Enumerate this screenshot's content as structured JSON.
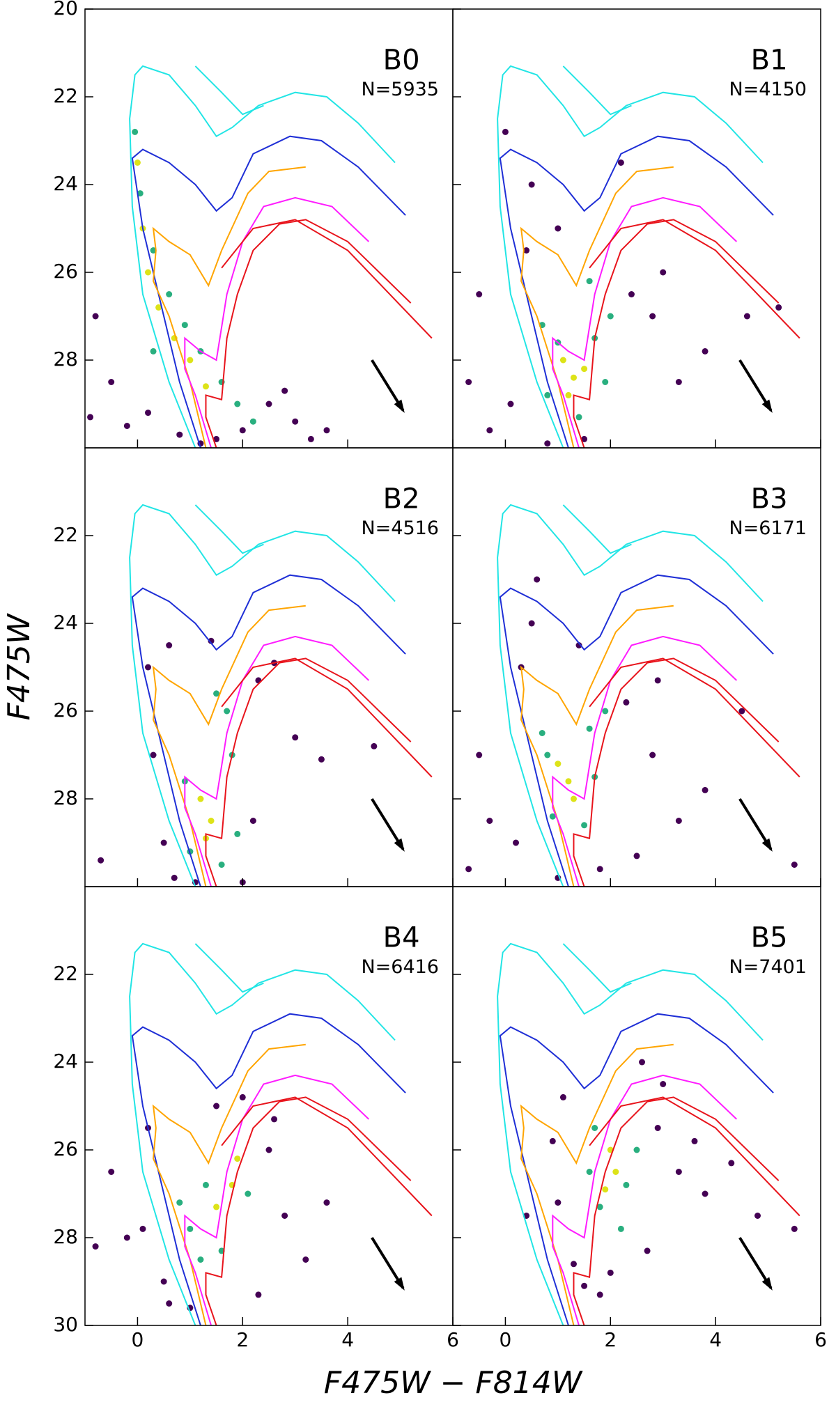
{
  "xlabel": "F475W − F814W",
  "ylabel": "F475W",
  "isochrones": [
    {
      "color": "#22e5e5",
      "x": [
        1.1,
        0.6,
        0.1,
        -0.1,
        -0.15,
        -0.05,
        0.1,
        0.6,
        1.1,
        1.5,
        1.8,
        2.3,
        3.0,
        3.6,
        4.2,
        4.9,
        null,
        1.1,
        1.6,
        2.0,
        2.4
      ],
      "y": [
        30,
        28.5,
        26.5,
        24.5,
        22.5,
        21.5,
        21.3,
        21.5,
        22.2,
        22.9,
        22.7,
        22.2,
        21.9,
        22.0,
        22.6,
        23.5,
        null,
        21.3,
        21.9,
        22.4,
        22.2
      ]
    },
    {
      "color": "#1f2fd6",
      "x": [
        1.2,
        0.8,
        0.4,
        0.1,
        -0.1,
        0.1,
        0.6,
        1.1,
        1.5,
        1.8,
        2.2,
        2.9,
        3.5,
        4.2,
        5.1
      ],
      "y": [
        30,
        28.5,
        26.5,
        25,
        23.4,
        23.2,
        23.5,
        24.0,
        24.6,
        24.3,
        23.3,
        22.9,
        23.0,
        23.6,
        24.7
      ]
    },
    {
      "color": "#ffa500",
      "x": [
        1.3,
        1.0,
        0.6,
        0.3,
        0.35,
        0.3,
        0.6,
        1.0,
        1.35,
        1.6,
        2.1,
        2.5,
        3.2
      ],
      "y": [
        30,
        28.5,
        27.0,
        26.2,
        25.5,
        25.0,
        25.3,
        25.6,
        26.3,
        25.5,
        24.2,
        23.7,
        23.6
      ]
    },
    {
      "color": "#ff1cff",
      "x": [
        1.4,
        1.1,
        0.9,
        0.9,
        1.2,
        1.5,
        1.7,
        2.0,
        2.4,
        3.0,
        3.7,
        4.4
      ],
      "y": [
        30,
        28.8,
        28.2,
        27.5,
        27.8,
        28.0,
        26.5,
        25.3,
        24.5,
        24.3,
        24.5,
        25.3
      ]
    },
    {
      "color": "#e8141c",
      "x": [
        1.5,
        1.3,
        1.3,
        1.6,
        1.7,
        1.9,
        2.2,
        2.7,
        3.2,
        4.0,
        4.6,
        5.2,
        null,
        1.6,
        2.2,
        3.0,
        4.0,
        5.6
      ],
      "y": [
        30,
        29.3,
        28.8,
        28.9,
        27.5,
        26.5,
        25.5,
        24.9,
        24.8,
        25.3,
        26.0,
        26.7,
        null,
        25.9,
        25.0,
        24.8,
        25.5,
        27.5
      ]
    }
  ],
  "chart_data": [
    {
      "type": "scatter",
      "title": "B0",
      "annotation": "N=5935",
      "xlim": [
        -1,
        6
      ],
      "ylim": [
        30,
        20
      ],
      "xticks": [
        0,
        2,
        4,
        6
      ],
      "yticks": [
        20,
        22,
        24,
        26,
        28
      ],
      "series": [
        {
          "color": "#440154",
          "x": [
            -0.8,
            -0.5,
            -0.2,
            0.2,
            0.8,
            1.5,
            2.0,
            2.5,
            3.0,
            3.3,
            3.6,
            -0.9,
            2.8,
            1.2
          ],
          "y": [
            27.0,
            28.5,
            29.5,
            29.2,
            29.7,
            29.8,
            29.6,
            29.0,
            29.4,
            29.8,
            29.6,
            29.3,
            28.7,
            29.9
          ]
        },
        {
          "color": "#29af7f",
          "x": [
            -0.05,
            0.05,
            0.3,
            0.6,
            0.9,
            1.2,
            1.6,
            1.9,
            2.2,
            0.3
          ],
          "y": [
            22.8,
            24.2,
            25.5,
            26.5,
            27.2,
            27.8,
            28.5,
            29.0,
            29.4,
            27.8
          ]
        },
        {
          "color": "#dde318",
          "x": [
            0.0,
            0.1,
            0.2,
            0.4,
            0.7,
            1.0,
            1.3
          ],
          "y": [
            23.5,
            25.0,
            26.0,
            26.8,
            27.5,
            28.0,
            28.6
          ]
        }
      ]
    },
    {
      "type": "scatter",
      "title": "B1",
      "annotation": "N=4150",
      "xlim": [
        -1,
        6
      ],
      "ylim": [
        30,
        20
      ],
      "xticks": [
        0,
        2,
        4,
        6
      ],
      "yticks": [
        20,
        22,
        24,
        26,
        28
      ],
      "series": [
        {
          "color": "#440154",
          "x": [
            -0.7,
            -0.3,
            0.1,
            0.4,
            0.5,
            2.4,
            2.8,
            3.3,
            3.8,
            1.0,
            1.5,
            0.0,
            2.2,
            3.0,
            4.6,
            5.2,
            -0.5,
            0.8
          ],
          "y": [
            28.5,
            29.6,
            29.0,
            25.5,
            24.0,
            26.5,
            27.0,
            28.5,
            27.8,
            25.0,
            29.8,
            22.8,
            23.5,
            26.0,
            27.0,
            26.8,
            26.5,
            29.9
          ]
        },
        {
          "color": "#29af7f",
          "x": [
            0.7,
            1.0,
            1.7,
            1.9,
            1.4,
            0.8,
            2.0,
            1.6
          ],
          "y": [
            27.2,
            27.6,
            27.5,
            28.5,
            29.3,
            28.8,
            27.0,
            26.2
          ]
        },
        {
          "color": "#dde318",
          "x": [
            1.1,
            1.3,
            1.5,
            1.2
          ],
          "y": [
            28.0,
            28.4,
            28.2,
            28.8
          ]
        }
      ]
    },
    {
      "type": "scatter",
      "title": "B2",
      "annotation": "N=4516",
      "xlim": [
        -1,
        6
      ],
      "ylim": [
        30,
        20
      ],
      "xticks": [
        0,
        2,
        4,
        6
      ],
      "yticks": [
        22,
        24,
        26,
        28
      ],
      "series": [
        {
          "color": "#440154",
          "x": [
            0.3,
            0.5,
            0.7,
            2.3,
            2.6,
            3.0,
            2.2,
            1.4,
            0.2,
            -0.7,
            3.5,
            1.1,
            2.0,
            4.5,
            0.6
          ],
          "y": [
            27.0,
            29.0,
            29.8,
            25.3,
            24.9,
            26.6,
            28.5,
            24.4,
            25.0,
            29.4,
            27.1,
            29.9,
            29.9,
            26.8,
            24.5
          ]
        },
        {
          "color": "#29af7f",
          "x": [
            0.9,
            1.7,
            1.8,
            1.9,
            1.0,
            1.6,
            1.5
          ],
          "y": [
            27.6,
            26.0,
            27.0,
            28.8,
            29.2,
            29.5,
            25.6
          ]
        },
        {
          "color": "#dde318",
          "x": [
            1.2,
            1.4,
            1.3
          ],
          "y": [
            28.0,
            28.5,
            28.9
          ]
        }
      ]
    },
    {
      "type": "scatter",
      "title": "B3",
      "annotation": "N=6171",
      "xlim": [
        -1,
        6
      ],
      "ylim": [
        30,
        20
      ],
      "xticks": [
        0,
        2,
        4,
        6
      ],
      "yticks": [
        22,
        24,
        26,
        28
      ],
      "series": [
        {
          "color": "#440154",
          "x": [
            -0.5,
            -0.3,
            0.3,
            0.5,
            0.2,
            2.3,
            2.8,
            3.3,
            2.5,
            1.0,
            1.4,
            3.8,
            4.5,
            5.5,
            -0.7,
            0.6,
            1.8,
            2.9
          ],
          "y": [
            27.0,
            28.5,
            25.0,
            24.0,
            29.0,
            25.8,
            27.0,
            28.5,
            29.3,
            29.8,
            24.5,
            27.8,
            26.0,
            29.5,
            29.6,
            23.0,
            29.6,
            25.3
          ]
        },
        {
          "color": "#29af7f",
          "x": [
            0.7,
            0.8,
            1.6,
            1.7,
            1.5,
            0.9,
            1.9
          ],
          "y": [
            26.5,
            27.0,
            26.4,
            27.5,
            28.6,
            28.4,
            26.0
          ]
        },
        {
          "color": "#dde318",
          "x": [
            1.0,
            1.2,
            1.3
          ],
          "y": [
            27.2,
            27.6,
            28.0
          ]
        }
      ]
    },
    {
      "type": "scatter",
      "title": "B4",
      "annotation": "N=6416",
      "xlim": [
        -1,
        6
      ],
      "ylim": [
        30,
        20
      ],
      "xticks": [
        0,
        2,
        4,
        6
      ],
      "yticks": [
        22,
        24,
        26,
        28,
        30
      ],
      "series": [
        {
          "color": "#440154",
          "x": [
            -0.5,
            -0.2,
            0.2,
            0.5,
            2.5,
            2.8,
            3.2,
            2.3,
            1.0,
            1.5,
            2.0,
            0.1,
            -0.8,
            3.6,
            0.6,
            2.6
          ],
          "y": [
            26.5,
            28.0,
            25.5,
            29.0,
            26.0,
            27.5,
            28.5,
            29.3,
            29.6,
            25.0,
            24.8,
            27.8,
            28.2,
            27.2,
            29.5,
            25.3
          ]
        },
        {
          "color": "#29af7f",
          "x": [
            0.8,
            1.0,
            1.3,
            2.1,
            1.6,
            1.2
          ],
          "y": [
            27.2,
            27.8,
            26.8,
            27.0,
            28.3,
            28.5
          ]
        },
        {
          "color": "#dde318",
          "x": [
            1.9,
            1.8,
            1.5
          ],
          "y": [
            26.2,
            26.8,
            27.3
          ]
        }
      ]
    },
    {
      "type": "scatter",
      "title": "B5",
      "annotation": "N=7401",
      "xlim": [
        -1,
        6
      ],
      "ylim": [
        30,
        20
      ],
      "xticks": [
        0,
        2,
        4,
        6
      ],
      "yticks": [
        22,
        24,
        26,
        28,
        30
      ],
      "series": [
        {
          "color": "#440154",
          "x": [
            0.9,
            1.0,
            1.3,
            2.9,
            3.3,
            3.8,
            4.3,
            4.8,
            5.5,
            2.7,
            1.5,
            2.0,
            1.1,
            0.4,
            3.0,
            2.6,
            3.6,
            1.8
          ],
          "y": [
            25.8,
            27.2,
            28.6,
            25.5,
            26.5,
            27.0,
            26.3,
            27.5,
            27.8,
            28.3,
            29.1,
            28.8,
            24.8,
            27.5,
            24.5,
            24.0,
            25.8,
            29.3
          ]
        },
        {
          "color": "#29af7f",
          "x": [
            1.6,
            1.8,
            2.3,
            2.5,
            1.7,
            2.2
          ],
          "y": [
            26.5,
            27.3,
            26.8,
            26.0,
            25.5,
            27.8
          ]
        },
        {
          "color": "#dde318",
          "x": [
            2.0,
            2.1,
            1.9
          ],
          "y": [
            26.0,
            26.5,
            26.9
          ]
        }
      ]
    }
  ]
}
